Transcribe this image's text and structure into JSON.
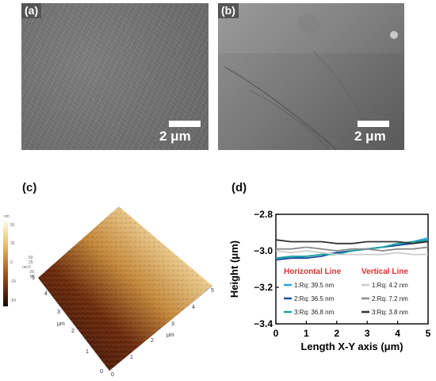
{
  "panels": {
    "a": {
      "label": "(a)",
      "scale": "2 μm"
    },
    "b": {
      "label": "(b)",
      "scale": "2 μm"
    },
    "c": {
      "label": "(c)",
      "colorbar_unit": "nm",
      "colorbar_ticks": [
        "50",
        "25",
        "0",
        "-25",
        "-50"
      ],
      "axis_unit": "μm",
      "x_ticks": [
        "0",
        "1",
        "2",
        "3",
        "4",
        "5"
      ],
      "y_ticks": [
        "0",
        "1",
        "2",
        "3",
        "4",
        "5"
      ],
      "z_ticks": [
        "50",
        "25",
        "0",
        "-25",
        "-50"
      ],
      "z_unit": "nm"
    },
    "d": {
      "label": "(d)"
    }
  },
  "chart_data": {
    "type": "line",
    "xlabel": "Length X-Y axis (μm)",
    "ylabel": "Height (μm)",
    "xlim": [
      0,
      5
    ],
    "ylim": [
      -3.4,
      -2.8
    ],
    "x_ticks": [
      "0",
      "1",
      "2",
      "3",
      "4",
      "5"
    ],
    "y_ticks": [
      "−3.4",
      "−3.2",
      "−3.0",
      "−2.8"
    ],
    "grid": false,
    "legend": {
      "horizontal_title": "Horizontal Line",
      "vertical_title": "Vertical Line",
      "entries": [
        {
          "text": "1:Rq: 39.5 nm",
          "color": "#29a3e8",
          "group": "horizontal"
        },
        {
          "text": "2:Rq: 36.5 nm",
          "color": "#1f4e9c",
          "group": "horizontal"
        },
        {
          "text": "3:Rq: 36.8 nm",
          "color": "#1aa3a0",
          "group": "horizontal"
        },
        {
          "text": "1:Rq: 4.2 nm",
          "color": "#cccccc",
          "group": "vertical"
        },
        {
          "text": "2:Rq: 7.2 nm",
          "color": "#8c8c8c",
          "group": "vertical"
        },
        {
          "text": "3:Rq: 3.8 nm",
          "color": "#333333",
          "group": "vertical"
        }
      ]
    },
    "series": [
      {
        "color": "#29a3e8",
        "x": [
          0,
          0.5,
          1,
          1.5,
          2,
          2.5,
          3,
          3.5,
          4,
          4.5,
          5
        ],
        "y": [
          -3.04,
          -3.04,
          -3.03,
          -3.02,
          -3.01,
          -3.0,
          -2.99,
          -2.98,
          -2.97,
          -2.95,
          -2.93
        ]
      },
      {
        "color": "#1f4e9c",
        "x": [
          0,
          0.5,
          1,
          1.5,
          2,
          2.5,
          3,
          3.5,
          4,
          4.5,
          5
        ],
        "y": [
          -3.05,
          -3.04,
          -3.04,
          -3.03,
          -3.01,
          -3.0,
          -2.99,
          -2.98,
          -2.97,
          -2.96,
          -2.94
        ]
      },
      {
        "color": "#1aa3a0",
        "x": [
          0,
          0.5,
          1,
          1.5,
          2,
          2.5,
          3,
          3.5,
          4,
          4.5,
          5
        ],
        "y": [
          -3.04,
          -3.03,
          -3.03,
          -3.02,
          -3.02,
          -3.0,
          -2.99,
          -2.98,
          -2.96,
          -2.95,
          -2.94
        ]
      },
      {
        "color": "#cccccc",
        "x": [
          0,
          0.5,
          1,
          1.5,
          2,
          2.5,
          3,
          3.5,
          4,
          4.5,
          5
        ],
        "y": [
          -3.0,
          -3.01,
          -3.0,
          -3.01,
          -3.02,
          -3.02,
          -3.02,
          -3.02,
          -3.01,
          -3.02,
          -3.02
        ]
      },
      {
        "color": "#8c8c8c",
        "x": [
          0,
          0.5,
          1,
          1.5,
          2,
          2.5,
          3,
          3.5,
          4,
          4.5,
          5
        ],
        "y": [
          -2.99,
          -2.99,
          -2.98,
          -2.99,
          -3.0,
          -2.99,
          -2.99,
          -3.0,
          -2.99,
          -2.99,
          -2.98
        ]
      },
      {
        "color": "#333333",
        "x": [
          0,
          0.5,
          1,
          1.5,
          2,
          2.5,
          3,
          3.5,
          4,
          4.5,
          5
        ],
        "y": [
          -2.94,
          -2.95,
          -2.95,
          -2.95,
          -2.96,
          -2.96,
          -2.95,
          -2.95,
          -2.95,
          -2.96,
          -2.95
        ]
      }
    ]
  }
}
